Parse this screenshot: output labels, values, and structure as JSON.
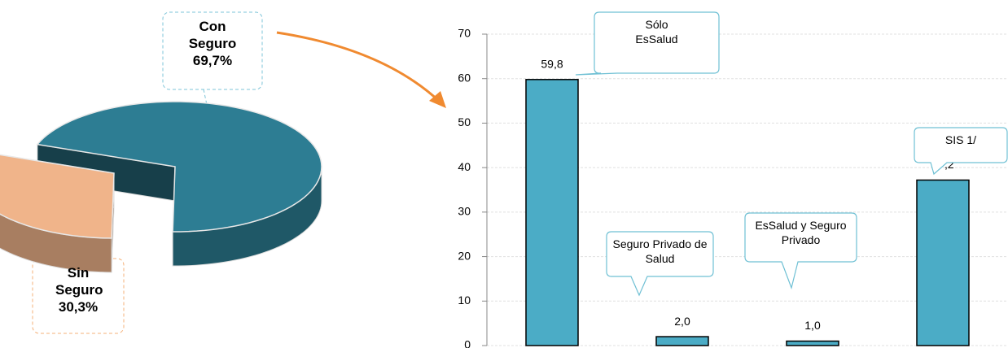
{
  "chart_data": [
    {
      "type": "pie",
      "categories": [
        "Con Seguro",
        "Sin Seguro"
      ],
      "values": [
        69.7,
        30.3
      ],
      "value_labels": [
        "69,7%",
        "30,3%"
      ],
      "colors": [
        "#2d7d93",
        "#f0b48a"
      ]
    },
    {
      "type": "bar",
      "categories": [
        "Sólo EsSalud",
        "Seguro Privado de Salud",
        "EsSalud y Seguro Privado",
        "SIS  1/"
      ],
      "values": [
        59.8,
        2.0,
        1.0,
        37.2
      ],
      "value_labels": [
        "59,8",
        "2,0",
        "1,0",
        "37,2"
      ],
      "color": "#4bacc6",
      "ylim": [
        0,
        70
      ],
      "yticks": [
        0,
        10,
        20,
        30,
        40,
        50,
        60,
        70
      ],
      "grid": true
    }
  ]
}
